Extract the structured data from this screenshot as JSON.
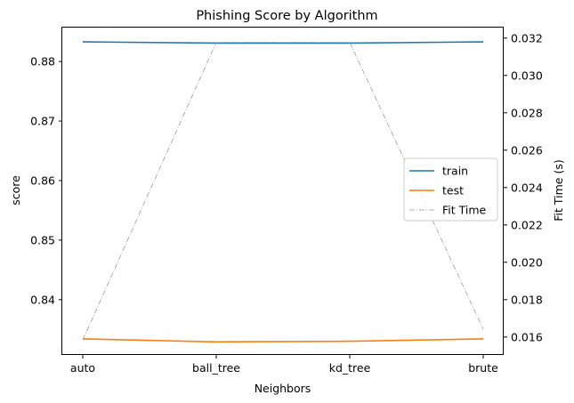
{
  "chart_data": {
    "type": "line",
    "title": "Phishing Score by Algorithm",
    "xlabel": "Neighbors",
    "ylabel": "score",
    "y2label": "Fit Time (s)",
    "categories": [
      "auto",
      "ball_tree",
      "kd_tree",
      "brute"
    ],
    "ylim": [
      0.8307,
      0.8857
    ],
    "y2lim": [
      0.01504,
      0.03256
    ],
    "yticks": [
      "0.84",
      "0.85",
      "0.86",
      "0.87",
      "0.88"
    ],
    "y2ticks": [
      "0.016",
      "0.018",
      "0.020",
      "0.022",
      "0.024",
      "0.026",
      "0.028",
      "0.030",
      "0.032"
    ],
    "series": [
      {
        "name": "train",
        "axis": "left",
        "color": "#1f77b4",
        "style": "solid",
        "values": [
          0.8833,
          0.8831,
          0.8831,
          0.8833
        ]
      },
      {
        "name": "test",
        "axis": "left",
        "color": "#ff7f0e",
        "style": "solid",
        "values": [
          0.8334,
          0.8329,
          0.833,
          0.8334
        ]
      },
      {
        "name": "Fit Time",
        "axis": "right",
        "color": "#999999",
        "style": "dashdot",
        "values": [
          0.01584,
          0.03177,
          0.03177,
          0.01642
        ]
      }
    ],
    "legend_position": "center-right",
    "grid": false
  }
}
